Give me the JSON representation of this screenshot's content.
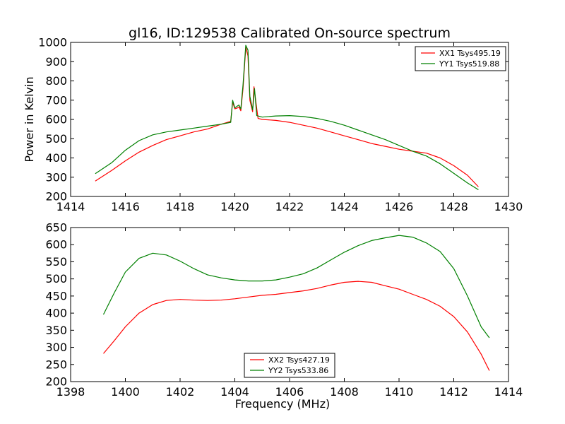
{
  "title": "gl16, ID:129538 Calibrated On-source spectrum",
  "chart_data": [
    {
      "type": "line",
      "title": "gl16, ID:129538 Calibrated On-source spectrum",
      "xlabel": "",
      "ylabel": "Power in Kelvin",
      "xlim": [
        1414,
        1430
      ],
      "ylim": [
        200,
        1000
      ],
      "xticks": [
        1414,
        1416,
        1418,
        1420,
        1422,
        1424,
        1426,
        1428,
        1430
      ],
      "yticks": [
        200,
        300,
        400,
        500,
        600,
        700,
        800,
        900,
        1000
      ],
      "legend_position": "top-right",
      "grid": false,
      "series": [
        {
          "name": "XX1 Tsys495.19",
          "color": "#ff0000",
          "points": [
            [
              1414.9,
              280
            ],
            [
              1415.5,
              335
            ],
            [
              1416,
              385
            ],
            [
              1416.5,
              430
            ],
            [
              1417,
              465
            ],
            [
              1417.5,
              495
            ],
            [
              1418,
              515
            ],
            [
              1418.5,
              535
            ],
            [
              1419,
              550
            ],
            [
              1419.5,
              575
            ],
            [
              1419.85,
              590
            ],
            [
              1419.92,
              690
            ],
            [
              1420.0,
              655
            ],
            [
              1420.1,
              660
            ],
            [
              1420.15,
              665
            ],
            [
              1420.22,
              645
            ],
            [
              1420.3,
              760
            ],
            [
              1420.4,
              975
            ],
            [
              1420.48,
              930
            ],
            [
              1420.55,
              700
            ],
            [
              1420.65,
              640
            ],
            [
              1420.7,
              770
            ],
            [
              1420.78,
              680
            ],
            [
              1420.85,
              605
            ],
            [
              1421,
              600
            ],
            [
              1421.5,
              595
            ],
            [
              1422,
              585
            ],
            [
              1422.5,
              570
            ],
            [
              1423,
              555
            ],
            [
              1423.5,
              535
            ],
            [
              1424,
              515
            ],
            [
              1424.5,
              495
            ],
            [
              1425,
              475
            ],
            [
              1425.5,
              460
            ],
            [
              1426,
              445
            ],
            [
              1426.5,
              435
            ],
            [
              1427,
              425
            ],
            [
              1427.5,
              400
            ],
            [
              1428,
              360
            ],
            [
              1428.5,
              310
            ],
            [
              1428.9,
              250
            ]
          ]
        },
        {
          "name": "YY1 Tsys519.88",
          "color": "#008000",
          "points": [
            [
              1414.9,
              318
            ],
            [
              1415.5,
              375
            ],
            [
              1416,
              440
            ],
            [
              1416.5,
              490
            ],
            [
              1417,
              520
            ],
            [
              1417.5,
              535
            ],
            [
              1418,
              545
            ],
            [
              1418.5,
              555
            ],
            [
              1419,
              565
            ],
            [
              1419.5,
              575
            ],
            [
              1419.85,
              585
            ],
            [
              1419.92,
              700
            ],
            [
              1420.0,
              660
            ],
            [
              1420.1,
              670
            ],
            [
              1420.15,
              675
            ],
            [
              1420.22,
              655
            ],
            [
              1420.3,
              780
            ],
            [
              1420.4,
              985
            ],
            [
              1420.48,
              960
            ],
            [
              1420.55,
              720
            ],
            [
              1420.65,
              650
            ],
            [
              1420.72,
              760
            ],
            [
              1420.8,
              620
            ],
            [
              1421,
              612
            ],
            [
              1421.5,
              618
            ],
            [
              1422,
              620
            ],
            [
              1422.5,
              615
            ],
            [
              1423,
              605
            ],
            [
              1423.5,
              590
            ],
            [
              1424,
              570
            ],
            [
              1424.5,
              545
            ],
            [
              1425,
              520
            ],
            [
              1425.5,
              495
            ],
            [
              1426,
              465
            ],
            [
              1426.5,
              435
            ],
            [
              1427,
              410
            ],
            [
              1427.5,
              370
            ],
            [
              1428,
              320
            ],
            [
              1428.5,
              270
            ],
            [
              1428.9,
              235
            ]
          ]
        }
      ]
    },
    {
      "type": "line",
      "title": "",
      "xlabel": "Frequency (MHz)",
      "ylabel": "",
      "xlim": [
        1398,
        1414
      ],
      "ylim": [
        200,
        650
      ],
      "xticks": [
        1398,
        1400,
        1402,
        1404,
        1406,
        1408,
        1410,
        1412,
        1414
      ],
      "yticks": [
        200,
        250,
        300,
        350,
        400,
        450,
        500,
        550,
        600,
        650
      ],
      "legend_position": "lower-center",
      "grid": false,
      "series": [
        {
          "name": "XX2 Tsys427.19",
          "color": "#ff0000",
          "points": [
            [
              1399.2,
              282
            ],
            [
              1399.6,
              320
            ],
            [
              1400,
              360
            ],
            [
              1400.5,
              400
            ],
            [
              1401,
              425
            ],
            [
              1401.5,
              437
            ],
            [
              1402,
              440
            ],
            [
              1402.5,
              438
            ],
            [
              1403,
              437
            ],
            [
              1403.5,
              438
            ],
            [
              1404,
              442
            ],
            [
              1404.5,
              447
            ],
            [
              1405,
              452
            ],
            [
              1405.5,
              455
            ],
            [
              1406,
              460
            ],
            [
              1406.5,
              465
            ],
            [
              1407,
              472
            ],
            [
              1407.5,
              482
            ],
            [
              1408,
              490
            ],
            [
              1408.5,
              493
            ],
            [
              1409,
              490
            ],
            [
              1409.5,
              480
            ],
            [
              1410,
              470
            ],
            [
              1410.5,
              455
            ],
            [
              1411,
              440
            ],
            [
              1411.5,
              420
            ],
            [
              1412,
              390
            ],
            [
              1412.5,
              345
            ],
            [
              1413,
              280
            ],
            [
              1413.3,
              232
            ]
          ]
        },
        {
          "name": "YY2 Tsys533.86",
          "color": "#008000",
          "points": [
            [
              1399.2,
              396
            ],
            [
              1399.6,
              460
            ],
            [
              1400,
              520
            ],
            [
              1400.5,
              560
            ],
            [
              1401,
              575
            ],
            [
              1401.5,
              570
            ],
            [
              1402,
              552
            ],
            [
              1402.5,
              530
            ],
            [
              1403,
              512
            ],
            [
              1403.5,
              503
            ],
            [
              1404,
              497
            ],
            [
              1404.5,
              494
            ],
            [
              1405,
              494
            ],
            [
              1405.5,
              497
            ],
            [
              1406,
              505
            ],
            [
              1406.5,
              515
            ],
            [
              1407,
              532
            ],
            [
              1407.5,
              555
            ],
            [
              1408,
              578
            ],
            [
              1408.5,
              597
            ],
            [
              1409,
              612
            ],
            [
              1409.5,
              620
            ],
            [
              1410,
              627
            ],
            [
              1410.5,
              622
            ],
            [
              1411,
              605
            ],
            [
              1411.5,
              580
            ],
            [
              1412,
              530
            ],
            [
              1412.5,
              450
            ],
            [
              1413,
              360
            ],
            [
              1413.3,
              328
            ]
          ]
        }
      ]
    }
  ]
}
